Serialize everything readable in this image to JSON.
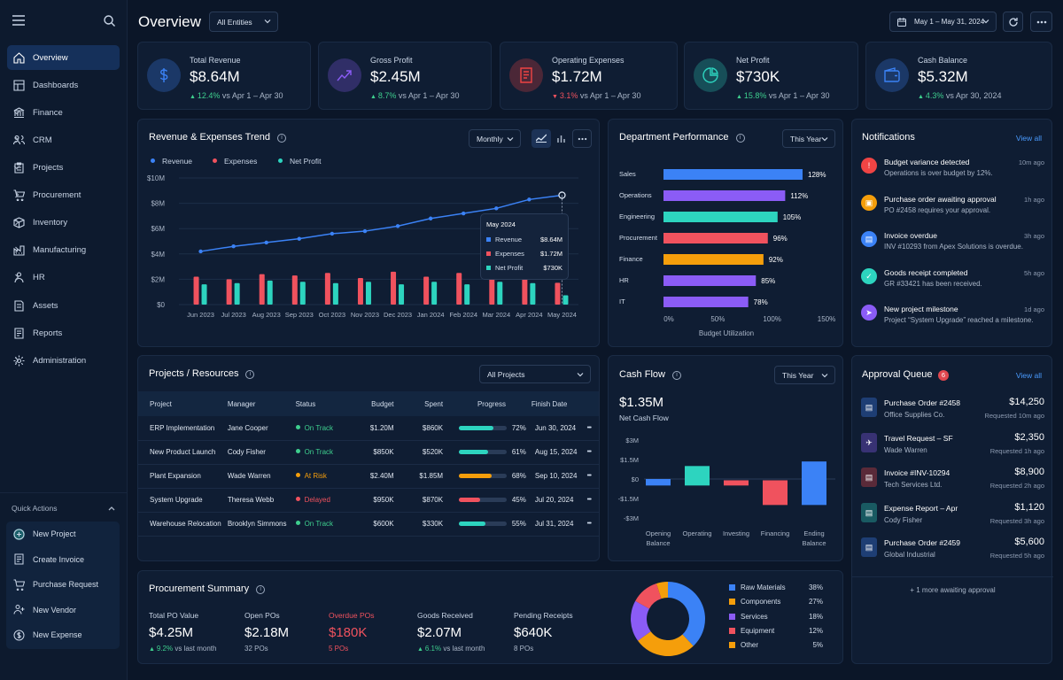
{
  "app": {
    "title": "Overview",
    "entity_filter": "All Entities",
    "date_range": "May 1 – May 31, 2024"
  },
  "nav": [
    {
      "label": "Overview",
      "icon": "home-icon"
    },
    {
      "label": "Dashboards",
      "icon": "dashboard-icon"
    },
    {
      "label": "Finance",
      "icon": "bank-icon"
    },
    {
      "label": "CRM",
      "icon": "users-icon"
    },
    {
      "label": "Projects",
      "icon": "clipboard-icon"
    },
    {
      "label": "Procurement",
      "icon": "cart-icon"
    },
    {
      "label": "Inventory",
      "icon": "box-icon"
    },
    {
      "label": "Manufacturing",
      "icon": "factory-icon"
    },
    {
      "label": "HR",
      "icon": "hr-icon"
    },
    {
      "label": "Assets",
      "icon": "asset-icon"
    },
    {
      "label": "Reports",
      "icon": "report-icon"
    },
    {
      "label": "Administration",
      "icon": "gear-icon"
    }
  ],
  "quick_actions": {
    "title": "Quick Actions",
    "items": [
      {
        "label": "New Project",
        "icon": "new-project-icon"
      },
      {
        "label": "Create Invoice",
        "icon": "invoice-icon"
      },
      {
        "label": "Purchase Request",
        "icon": "cart-icon"
      },
      {
        "label": "New Vendor",
        "icon": "user-add-icon"
      },
      {
        "label": "New Expense",
        "icon": "expense-icon"
      }
    ]
  },
  "kpis": [
    {
      "title": "Total Revenue",
      "value": "$8.64M",
      "delta": "12.4%",
      "dir": "up",
      "compare": "vs Apr 1 – Apr 30",
      "color": "#3b82f6"
    },
    {
      "title": "Gross Profit",
      "value": "$2.45M",
      "delta": "8.7%",
      "dir": "up",
      "compare": "vs Apr 1 – Apr 30",
      "color": "#8b5cf6"
    },
    {
      "title": "Operating Expenses",
      "value": "$1.72M",
      "delta": "3.1%",
      "dir": "down",
      "compare": "vs Apr 1 – Apr 30",
      "color": "#ef4444"
    },
    {
      "title": "Net Profit",
      "value": "$730K",
      "delta": "15.8%",
      "dir": "up",
      "compare": "vs Apr 1 – Apr 30",
      "color": "#2dd4bf"
    },
    {
      "title": "Cash Balance",
      "value": "$5.32M",
      "delta": "4.3%",
      "dir": "up",
      "compare": "vs Apr 30, 2024",
      "color": "#3b82f6"
    }
  ],
  "trend": {
    "title": "Revenue & Expenses Trend",
    "period": "Monthly",
    "legend": [
      "Revenue",
      "Expenses",
      "Net Profit"
    ],
    "tooltip": {
      "month": "May 2024",
      "rows": [
        {
          "label": "Revenue",
          "value": "$8.64M"
        },
        {
          "label": "Expenses",
          "value": "$1.72M"
        },
        {
          "label": "Net Profit",
          "value": "$730K"
        }
      ]
    }
  },
  "department": {
    "title": "Department Performance",
    "period": "This Year",
    "xlabel": "Budget Utilization"
  },
  "notifications": {
    "title": "Notifications",
    "view_all": "View all",
    "items": [
      {
        "title": "Budget variance detected",
        "sub": "Operations is over budget by 12%.",
        "time": "10m ago",
        "color": "#ef4444"
      },
      {
        "title": "Purchase order awaiting approval",
        "sub": "PO #2458 requires your approval.",
        "time": "1h ago",
        "color": "#f59e0b"
      },
      {
        "title": "Invoice overdue",
        "sub": "INV #10293 from Apex Solutions is overdue.",
        "time": "3h ago",
        "color": "#3b82f6"
      },
      {
        "title": "Goods receipt completed",
        "sub": "GR #33421 has been received.",
        "time": "5h ago",
        "color": "#2dd4bf"
      },
      {
        "title": "New project milestone",
        "sub": "Project “System Upgrade” reached a milestone.",
        "time": "1d ago",
        "color": "#8b5cf6"
      }
    ]
  },
  "projects": {
    "title": "Projects / Resources",
    "filter": "All Projects",
    "columns": [
      "Project",
      "Manager",
      "Status",
      "Budget",
      "Spent",
      "Progress",
      "Finish Date"
    ],
    "rows": [
      {
        "project": "ERP Implementation",
        "manager": "Jane Cooper",
        "status": "On Track",
        "status_color": "#3ecf8e",
        "budget": "$1.20M",
        "spent": "$860K",
        "progress": 72,
        "progress_label": "72%",
        "finish": "Jun 30, 2024"
      },
      {
        "project": "New Product Launch",
        "manager": "Cody Fisher",
        "status": "On Track",
        "status_color": "#3ecf8e",
        "budget": "$850K",
        "spent": "$520K",
        "progress": 61,
        "progress_label": "61%",
        "finish": "Aug 15, 2024"
      },
      {
        "project": "Plant Expansion",
        "manager": "Wade Warren",
        "status": "At Risk",
        "status_color": "#f59e0b",
        "budget": "$2.40M",
        "spent": "$1.85M",
        "progress": 68,
        "progress_label": "68%",
        "finish": "Sep 10, 2024"
      },
      {
        "project": "System Upgrade",
        "manager": "Theresa Webb",
        "status": "Delayed",
        "status_color": "#f0525e",
        "budget": "$950K",
        "spent": "$870K",
        "progress": 45,
        "progress_label": "45%",
        "finish": "Jul 20, 2024"
      },
      {
        "project": "Warehouse Relocation",
        "manager": "Brooklyn Simmons",
        "status": "On Track",
        "status_color": "#3ecf8e",
        "budget": "$600K",
        "spent": "$330K",
        "progress": 55,
        "progress_label": "55%",
        "finish": "Jul 31, 2024"
      }
    ]
  },
  "cashflow": {
    "title": "Cash Flow",
    "period": "This Year",
    "value": "$1.35M",
    "label": "Net Cash Flow"
  },
  "approval": {
    "title": "Approval Queue",
    "count": "6",
    "view_all": "View all",
    "more": "1 more awaiting approval",
    "items": [
      {
        "title": "Purchase Order #2458",
        "sub": "Office Supplies Co.",
        "amount": "$14,250",
        "time": "Requested 10m ago",
        "color": "#3b82f6"
      },
      {
        "title": "Travel Request – SF",
        "sub": "Wade Warren",
        "amount": "$2,350",
        "time": "Requested 1h ago",
        "color": "#8b5cf6"
      },
      {
        "title": "Invoice #INV-10294",
        "sub": "Tech Services Ltd.",
        "amount": "$8,900",
        "time": "Requested 2h ago",
        "color": "#ef4444"
      },
      {
        "title": "Expense Report – Apr",
        "sub": "Cody Fisher",
        "amount": "$1,120",
        "time": "Requested 3h ago",
        "color": "#2dd4bf"
      },
      {
        "title": "Purchase Order #2459",
        "sub": "Global Industrial",
        "amount": "$5,600",
        "time": "Requested 5h ago",
        "color": "#3b82f6"
      }
    ]
  },
  "procurement": {
    "title": "Procurement Summary",
    "metrics": [
      {
        "label": "Total PO Value",
        "value": "$4.25M",
        "sub": "9.2%",
        "sub2": "vs last month",
        "label_color": "#c9d5e6",
        "value_color": "#ffffff",
        "sub_color": "#3ecf8e"
      },
      {
        "label": "Open POs",
        "value": "$2.18M",
        "sub": "32 POs",
        "sub2": "",
        "label_color": "#c9d5e6",
        "value_color": "#ffffff",
        "sub_color": "#aab6c8"
      },
      {
        "label": "Overdue POs",
        "value": "$180K",
        "sub": "5 POs",
        "sub2": "",
        "label_color": "#f0525e",
        "value_color": "#f0525e",
        "sub_color": "#f0525e"
      },
      {
        "label": "Goods Received",
        "value": "$2.07M",
        "sub": "6.1%",
        "sub2": "vs last month",
        "label_color": "#c9d5e6",
        "value_color": "#ffffff",
        "sub_color": "#3ecf8e"
      },
      {
        "label": "Pending Receipts",
        "value": "$640K",
        "sub": "8 POs",
        "sub2": "",
        "label_color": "#c9d5e6",
        "value_color": "#ffffff",
        "sub_color": "#aab6c8"
      }
    ]
  },
  "chart_data": [
    {
      "type": "bar",
      "title": "Revenue & Expenses Trend",
      "categories": [
        "Jun 2023",
        "Jul 2023",
        "Aug 2023",
        "Sep 2023",
        "Oct 2023",
        "Nov 2023",
        "Dec 2023",
        "Jan 2024",
        "Feb 2024",
        "Mar 2024",
        "Apr 2024",
        "May 2024"
      ],
      "series": [
        {
          "name": "Revenue",
          "kind": "line",
          "color": "#3b82f6",
          "values": [
            4.2,
            4.6,
            4.9,
            5.2,
            5.6,
            5.8,
            6.2,
            6.8,
            7.2,
            7.6,
            8.3,
            8.64
          ]
        },
        {
          "name": "Expenses",
          "kind": "bar",
          "color": "#f0525e",
          "values": [
            2.2,
            2.0,
            2.4,
            2.3,
            2.5,
            2.1,
            2.6,
            2.2,
            2.5,
            2.3,
            2.2,
            1.72
          ]
        },
        {
          "name": "Net Profit",
          "kind": "bar",
          "color": "#2dd4bf",
          "values": [
            1.6,
            1.7,
            1.9,
            1.8,
            1.7,
            1.8,
            1.6,
            1.8,
            1.6,
            1.8,
            1.7,
            0.73
          ]
        }
      ],
      "yticks": [
        "$0",
        "$2M",
        "$4M",
        "$6M",
        "$8M",
        "$10M"
      ],
      "ylim": [
        0,
        10
      ]
    },
    {
      "type": "bar",
      "orientation": "horizontal",
      "title": "Department Performance",
      "categories": [
        "Sales",
        "Operations",
        "Engineering",
        "Procurement",
        "Finance",
        "HR",
        "IT"
      ],
      "values": [
        128,
        112,
        105,
        96,
        92,
        85,
        78
      ],
      "labels": [
        "128%",
        "112%",
        "105%",
        "96%",
        "92%",
        "85%",
        "78%"
      ],
      "colors": [
        "#3b82f6",
        "#8b5cf6",
        "#2dd4bf",
        "#f0525e",
        "#f59e0b",
        "#8b5cf6",
        "#8b5cf6"
      ],
      "xticks": [
        "0%",
        "50%",
        "100%",
        "150%"
      ],
      "xlim": [
        0,
        150
      ],
      "xlabel": "Budget Utilization"
    },
    {
      "type": "bar",
      "subtype": "waterfall",
      "title": "Cash Flow",
      "categories": [
        "Opening Balance",
        "Operating",
        "Investing",
        "Financing",
        "Ending Balance"
      ],
      "cat_lines": [
        [
          "Opening",
          "Balance"
        ],
        [
          "Operating"
        ],
        [
          "Investing"
        ],
        [
          "Financing"
        ],
        [
          "Ending",
          "Balance"
        ]
      ],
      "ranges": [
        [
          0,
          -0.5
        ],
        [
          -0.5,
          1.0
        ],
        [
          -0.1,
          -0.5
        ],
        [
          -0.1,
          -2.0
        ],
        [
          1.35,
          -2.0
        ]
      ],
      "colors": [
        "#3b82f6",
        "#2dd4bf",
        "#f0525e",
        "#f0525e",
        "#3b82f6"
      ],
      "yticks": [
        "$3M",
        "$1.5M",
        "$0",
        "-$1.5M",
        "-$3M"
      ],
      "ylim": [
        -3,
        3
      ]
    },
    {
      "type": "pie",
      "subtype": "donut",
      "labels": [
        "Raw Materials",
        "Components",
        "Services",
        "Equipment",
        "Other"
      ],
      "values": [
        38,
        27,
        18,
        12,
        5
      ],
      "value_labels": [
        "38%",
        "27%",
        "18%",
        "12%",
        "5%"
      ],
      "colors": [
        "#3b82f6",
        "#f59e0b",
        "#8b5cf6",
        "#f0525e",
        "#f59e0b"
      ]
    }
  ]
}
